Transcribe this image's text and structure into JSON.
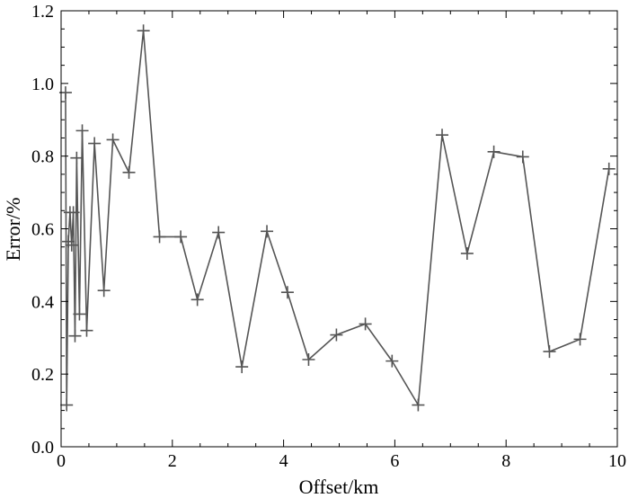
{
  "chart_data": {
    "type": "line",
    "xlabel": "Offset/km",
    "ylabel": "Error/%",
    "xlim": [
      0,
      10
    ],
    "ylim": [
      0,
      1.2
    ],
    "xticks": [
      0,
      2,
      4,
      6,
      8,
      10
    ],
    "yticks": [
      0.0,
      0.2,
      0.4,
      0.6,
      0.8,
      1.0,
      1.2
    ],
    "xtick_labels": [
      "0",
      "2",
      "4",
      "6",
      "8",
      "10"
    ],
    "ytick_labels": [
      "0.0",
      "0.2",
      "0.4",
      "0.6",
      "0.8",
      "1.0",
      "1.2"
    ],
    "grid": false,
    "line_color": "#555555",
    "marker": "plus",
    "series": [
      {
        "x": [
          0.08,
          0.1,
          0.13,
          0.16,
          0.19,
          0.22,
          0.25,
          0.28,
          0.33,
          0.38,
          0.46,
          0.6,
          0.77,
          0.93,
          1.22,
          1.48,
          1.77,
          2.15,
          2.45,
          2.83,
          3.25,
          3.7,
          4.07,
          4.45,
          4.95,
          5.47,
          5.95,
          6.42,
          6.85,
          7.3,
          7.78,
          8.3,
          8.78,
          9.33,
          9.85
        ],
        "y": [
          0.975,
          0.115,
          0.565,
          0.645,
          0.555,
          0.645,
          0.305,
          0.795,
          0.365,
          0.87,
          0.32,
          0.835,
          0.43,
          0.845,
          0.755,
          1.145,
          0.578,
          0.578,
          0.405,
          0.59,
          0.22,
          0.593,
          0.425,
          0.24,
          0.308,
          0.338,
          0.236,
          0.115,
          0.858,
          0.532,
          0.812,
          0.798,
          0.262,
          0.296,
          0.765
        ]
      }
    ]
  }
}
